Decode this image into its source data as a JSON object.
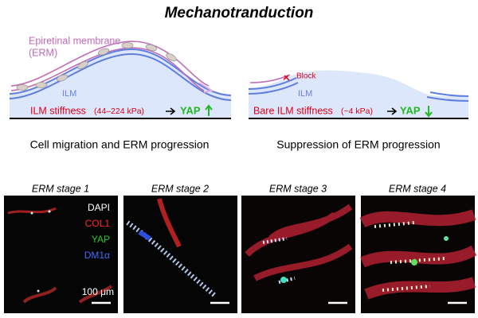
{
  "title": "Mechanotranduction",
  "left_panel": {
    "erm_label": "Epiretinal membrane",
    "erm_abbrev": "(ERM)",
    "ilm_label": "ILM",
    "stiffness_label": "ILM stiffness",
    "stiffness_range": "(44–224 kPa)",
    "yap_label": "YAP",
    "caption": "Cell migration and ERM progression"
  },
  "right_panel": {
    "block_label": "Block",
    "ilm_label": "ILM",
    "stiffness_label": "Bare ILM stiffness",
    "stiffness_range": "(~4 kPa)",
    "yap_label": "YAP",
    "caption": "Suppression of ERM progression"
  },
  "images": [
    {
      "label": "ERM stage 1"
    },
    {
      "label": "ERM stage 2"
    },
    {
      "label": "ERM stage 3"
    },
    {
      "label": "ERM stage 4"
    }
  ],
  "stain_legend": [
    "DAPI",
    "COL1",
    "YAP",
    "DM1α"
  ],
  "scale_bar": "100 μm"
}
